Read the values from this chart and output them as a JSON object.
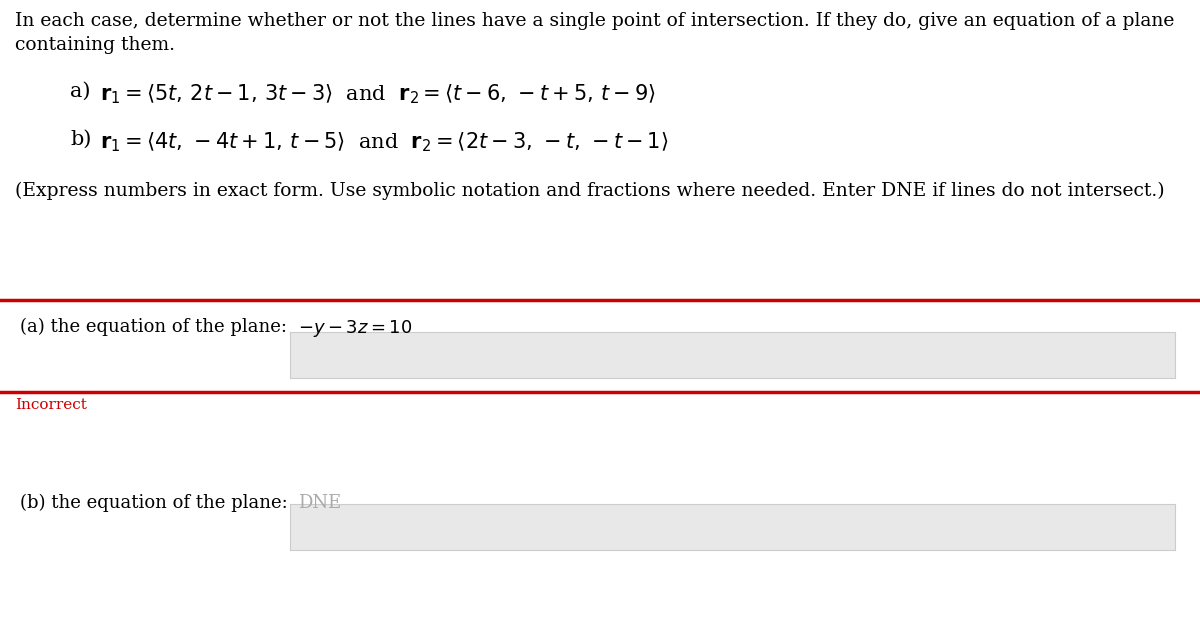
{
  "bg_color": "#ffffff",
  "text_color": "#000000",
  "red_color": "#cc0000",
  "input_bg_color": "#e8e8e8",
  "input_border_color": "#cccccc",
  "line1": "In each case, determine whether or not the lines have a single point of intersection. If they do, give an equation of a plane",
  "line2": "containing them.",
  "part_a": "a) ",
  "part_b": "b) ",
  "r1_math_a": "$\\mathbf{r}_1 = \\langle 5t,\\, 2t - 1,\\, 3t - 3 \\rangle$",
  "and_text": "and",
  "r2_math_a": "$\\mathbf{r}_2 = \\langle t - 6,\\, -t + 5,\\, t - 9 \\rangle$",
  "r1_math_b": "$\\mathbf{r}_1 = \\langle 4t,\\, -4t + 1,\\, t - 5 \\rangle$",
  "r2_math_b": "$\\mathbf{r}_2 = \\langle 2t - 3,\\, -t,\\, -t - 1 \\rangle$",
  "instruction": "(Express numbers in exact form. Use symbolic notation and fractions where needed. Enter DNE if lines do not intersect.)",
  "answer_a_label": "(a) the equation of the plane:",
  "answer_a_value": "$-y - 3z = 10$",
  "answer_b_label": "(b) the equation of the plane:",
  "answer_b_value": "DNE",
  "incorrect_text": "Incorrect",
  "body_fontsize": 13.5,
  "math_fontsize": 15,
  "answer_fontsize": 13,
  "incorrect_fontsize": 11
}
